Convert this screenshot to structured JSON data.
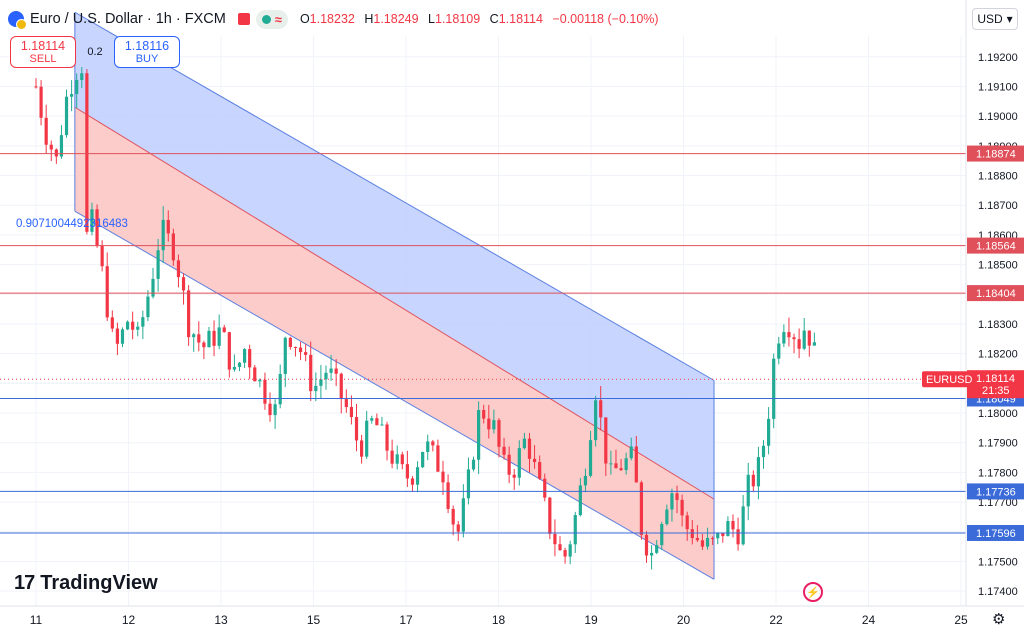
{
  "header": {
    "symbol_title": "Euro / U.S. Dollar · 1h · FXCM",
    "ohlc": [
      {
        "label": "O",
        "value": "1.18232"
      },
      {
        "label": "H",
        "value": "1.18249"
      },
      {
        "label": "L",
        "value": "1.18109"
      },
      {
        "label": "C",
        "value": "1.18114"
      },
      {
        "label": "",
        "value": "−0.00118 (−0.10%)"
      }
    ]
  },
  "trade": {
    "sell_price": "1.18114",
    "sell_label": "SELL",
    "spread": "0.2",
    "buy_price": "1.18116",
    "buy_label": "BUY"
  },
  "currency_button": "USD",
  "fib_label": "0.9071004492316483",
  "logo_text": "TradingView",
  "colors": {
    "up": "#22ab94",
    "down": "#f23645",
    "red_line": "#e0505a",
    "blue_line": "#3a6bd8",
    "channel_blue": "#c2d0ff",
    "channel_red": "#fbc6c4"
  },
  "chart_data": {
    "type": "candlestick",
    "symbol": "EURUSD",
    "last_price": "1.18114",
    "countdown": "21:35",
    "ylim": [
      1.1735,
      1.1927
    ],
    "y_ticks": [
      "1.19200",
      "1.19100",
      "1.19000",
      "1.18900",
      "1.18800",
      "1.18700",
      "1.18600",
      "1.18500",
      "1.18400",
      "1.18300",
      "1.18200",
      "1.18100",
      "1.18000",
      "1.17900",
      "1.17800",
      "1.17700",
      "1.17600",
      "1.17500",
      "1.17400"
    ],
    "x_ticks": [
      {
        "label": "11",
        "day": 11
      },
      {
        "label": "12",
        "day": 12
      },
      {
        "label": "13",
        "day": 13
      },
      {
        "label": "15",
        "day": 14
      },
      {
        "label": "17",
        "day": 15
      },
      {
        "label": "18",
        "day": 16
      },
      {
        "label": "19",
        "day": 17
      },
      {
        "label": "20",
        "day": 18
      },
      {
        "label": "22",
        "day": 19
      },
      {
        "label": "24",
        "day": 20
      },
      {
        "label": "25",
        "day": 21
      }
    ],
    "horizontal_levels": [
      {
        "price": 1.18874,
        "label": "1.18874",
        "color": "red"
      },
      {
        "price": 1.18564,
        "label": "1.18564",
        "color": "red"
      },
      {
        "price": 1.18404,
        "label": "1.18404",
        "color": "red"
      },
      {
        "price": 1.18049,
        "label": "1.18049",
        "color": "blue"
      },
      {
        "price": 1.17736,
        "label": "1.17736",
        "color": "blue"
      },
      {
        "price": 1.17596,
        "label": "1.17596",
        "color": "blue"
      }
    ],
    "channel": {
      "start_day": 11.42,
      "end_day": 18.33,
      "upper_start": 1.1935,
      "upper_end": 1.1811,
      "mid_start": 1.1903,
      "mid_end": 1.1771,
      "lower_start": 1.1868,
      "lower_end": 1.1744
    },
    "candle_path": [
      [
        11.0,
        1.191
      ],
      [
        11.1,
        1.1895
      ],
      [
        11.22,
        1.1885
      ],
      [
        11.32,
        1.1905
      ],
      [
        11.42,
        1.1915
      ],
      [
        11.52,
        1.1918
      ],
      [
        11.56,
        1.184
      ],
      [
        11.6,
        1.1865
      ],
      [
        11.7,
        1.185
      ],
      [
        11.85,
        1.182
      ],
      [
        12.0,
        1.1832
      ],
      [
        12.1,
        1.1825
      ],
      [
        12.25,
        1.1845
      ],
      [
        12.35,
        1.1862
      ],
      [
        12.5,
        1.1855
      ],
      [
        12.65,
        1.183
      ],
      [
        12.8,
        1.1822
      ],
      [
        13.0,
        1.1828
      ],
      [
        13.15,
        1.1812
      ],
      [
        13.25,
        1.1822
      ],
      [
        13.45,
        1.1808
      ],
      [
        13.6,
        1.18
      ],
      [
        13.7,
        1.1828
      ],
      [
        13.85,
        1.1822
      ],
      [
        14.0,
        1.1808
      ],
      [
        14.15,
        1.1815
      ],
      [
        14.35,
        1.1802
      ],
      [
        14.5,
        1.1788
      ],
      [
        14.65,
        1.1798
      ],
      [
        14.8,
        1.1788
      ],
      [
        14.95,
        1.178
      ],
      [
        15.05,
        1.1778
      ],
      [
        15.2,
        1.179
      ],
      [
        15.4,
        1.178
      ],
      [
        15.55,
        1.1758
      ],
      [
        15.65,
        1.1772
      ],
      [
        15.8,
        1.1802
      ],
      [
        15.95,
        1.1795
      ],
      [
        16.05,
        1.1782
      ],
      [
        16.15,
        1.178
      ],
      [
        16.3,
        1.1792
      ],
      [
        16.4,
        1.178
      ],
      [
        16.55,
        1.1762
      ],
      [
        16.7,
        1.175
      ],
      [
        16.8,
        1.176
      ],
      [
        16.95,
        1.1785
      ],
      [
        17.05,
        1.1808
      ],
      [
        17.2,
        1.1778
      ],
      [
        17.3,
        1.1782
      ],
      [
        17.45,
        1.1785
      ],
      [
        17.55,
        1.176
      ],
      [
        17.65,
        1.1752
      ],
      [
        17.8,
        1.177
      ],
      [
        17.9,
        1.1775
      ],
      [
        18.0,
        1.1762
      ],
      [
        18.1,
        1.176
      ],
      [
        18.2,
        1.1755
      ],
      [
        18.35,
        1.1756
      ],
      [
        18.45,
        1.1762
      ],
      [
        18.6,
        1.176
      ],
      [
        18.7,
        1.1775
      ],
      [
        18.8,
        1.178
      ],
      [
        18.9,
        1.1795
      ],
      [
        19.0,
        1.1825
      ],
      [
        19.1,
        1.1832
      ],
      [
        19.18,
        1.1828
      ],
      [
        19.25,
        1.1824
      ],
      [
        19.32,
        1.183
      ],
      [
        19.42,
        1.182
      ]
    ]
  }
}
